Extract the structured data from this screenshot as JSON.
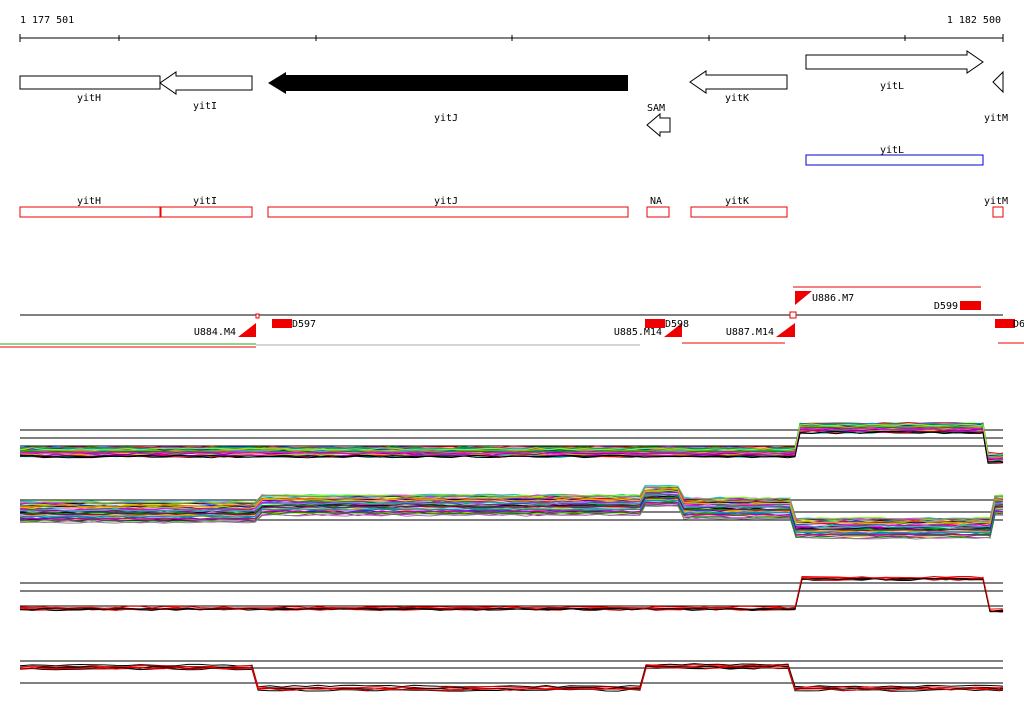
{
  "ruler": {
    "start": "1 177 501",
    "end": "1 182 500"
  },
  "genes": [
    {
      "label": "yitH"
    },
    {
      "label": "yitI"
    },
    {
      "label": "yitJ"
    },
    {
      "label": "SAM"
    },
    {
      "label": "yitK"
    },
    {
      "label": "yitL"
    },
    {
      "label": "yitM"
    }
  ],
  "annotation": {
    "label": "yitL"
  },
  "regions": [
    {
      "label": "yitH"
    },
    {
      "label": "yitI"
    },
    {
      "label": "yitJ"
    },
    {
      "label": "NA"
    },
    {
      "label": "yitK"
    },
    {
      "label": "yitM"
    }
  ],
  "features": [
    {
      "label": "U884.M4"
    },
    {
      "label": "D597"
    },
    {
      "label": "U885.M14"
    },
    {
      "label": "D598"
    },
    {
      "label": "U887.M14"
    },
    {
      "label": "U886.M7"
    },
    {
      "label": "D599"
    },
    {
      "label": "D6"
    }
  ]
}
